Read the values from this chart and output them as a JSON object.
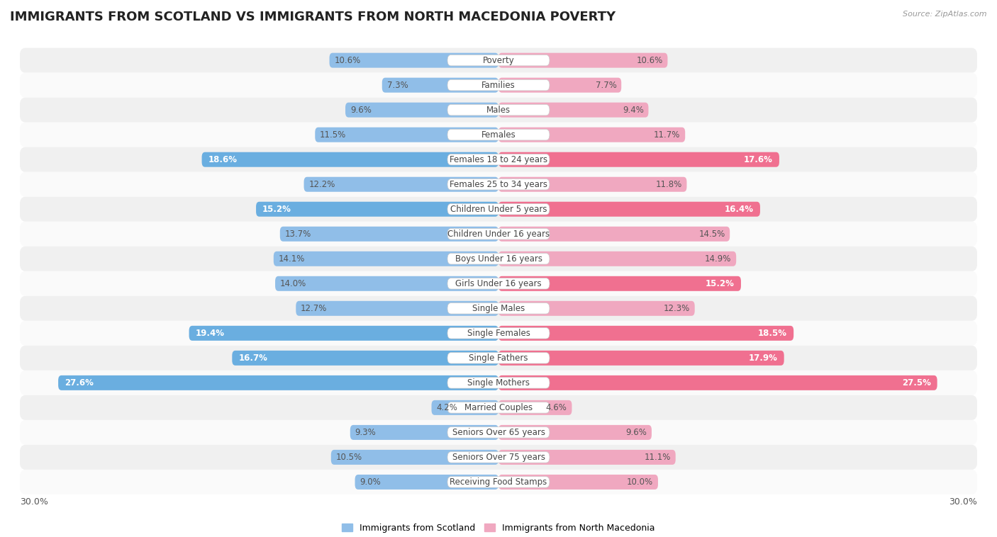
{
  "title": "IMMIGRANTS FROM SCOTLAND VS IMMIGRANTS FROM NORTH MACEDONIA POVERTY",
  "source": "Source: ZipAtlas.com",
  "categories": [
    "Poverty",
    "Families",
    "Males",
    "Females",
    "Females 18 to 24 years",
    "Females 25 to 34 years",
    "Children Under 5 years",
    "Children Under 16 years",
    "Boys Under 16 years",
    "Girls Under 16 years",
    "Single Males",
    "Single Females",
    "Single Fathers",
    "Single Mothers",
    "Married Couples",
    "Seniors Over 65 years",
    "Seniors Over 75 years",
    "Receiving Food Stamps"
  ],
  "scotland_values": [
    10.6,
    7.3,
    9.6,
    11.5,
    18.6,
    12.2,
    15.2,
    13.7,
    14.1,
    14.0,
    12.7,
    19.4,
    16.7,
    27.6,
    4.2,
    9.3,
    10.5,
    9.0
  ],
  "macedonia_values": [
    10.6,
    7.7,
    9.4,
    11.7,
    17.6,
    11.8,
    16.4,
    14.5,
    14.9,
    15.2,
    12.3,
    18.5,
    17.9,
    27.5,
    4.6,
    9.6,
    11.1,
    10.0
  ],
  "scotland_color_normal": "#90BEE8",
  "scotland_color_highlight": "#6AAEE0",
  "macedonia_color_normal": "#F0A8C0",
  "macedonia_color_highlight": "#F07090",
  "scotland_label": "Immigrants from Scotland",
  "macedonia_label": "Immigrants from North Macedonia",
  "background_color": "#ffffff",
  "row_color_even": "#f0f0f0",
  "row_color_odd": "#fafafa",
  "xlim": 30.0,
  "bar_height": 0.6,
  "title_fontsize": 13,
  "label_fontsize": 8.5,
  "value_fontsize": 8.5,
  "highlight_threshold": 15.0,
  "x_axis_label_left": "30.0%",
  "x_axis_label_right": "30.0%"
}
